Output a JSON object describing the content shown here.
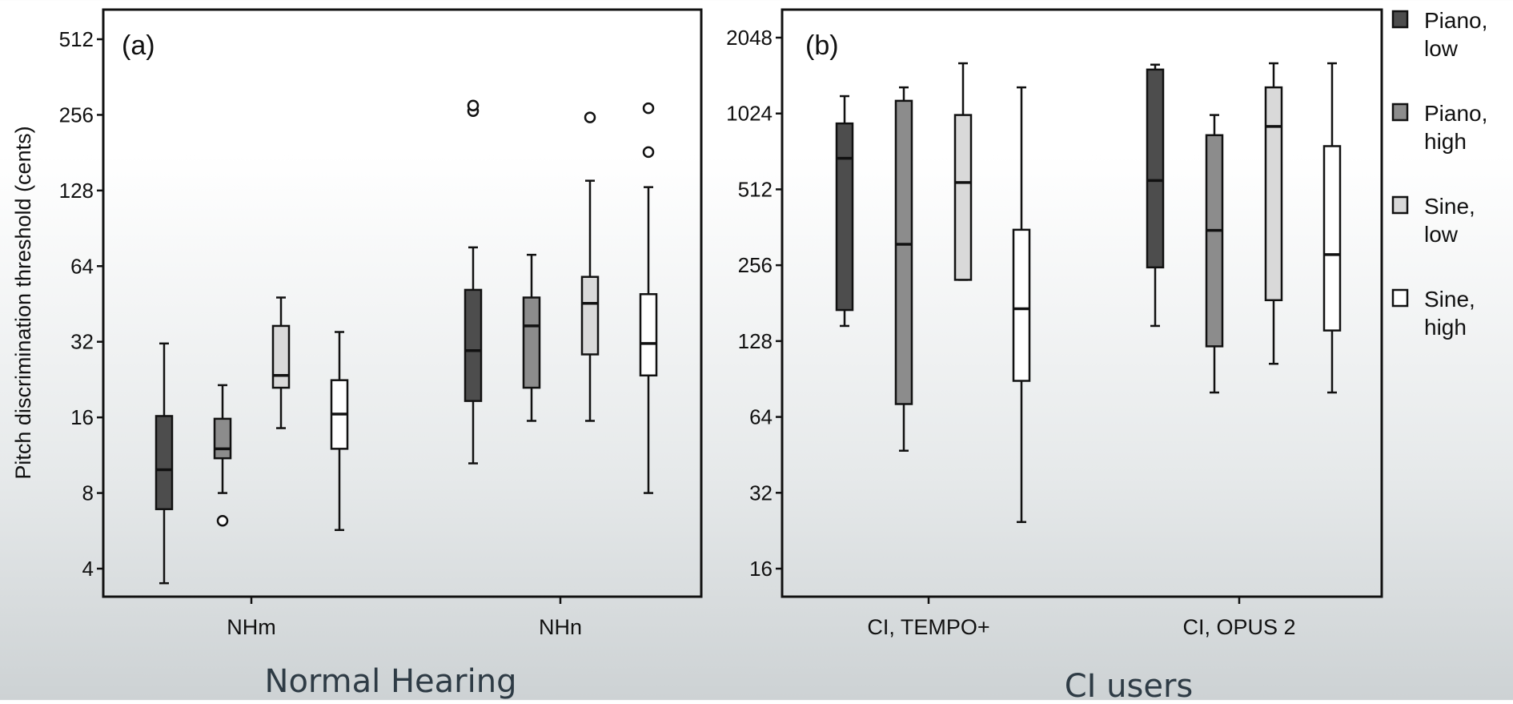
{
  "chart_data": [
    {
      "type": "box",
      "panel_label": "(a)",
      "ylabel": "Pitch discrimination threshold (cents)",
      "y_scale": "log2",
      "ylim": [
        3.4,
        600
      ],
      "yticks": [
        "4",
        "8",
        "16",
        "32",
        "64",
        "128",
        "256",
        "512"
      ],
      "categories": [
        "NHm",
        "NHn"
      ],
      "group_title": "Normal Hearing",
      "series": [
        {
          "name": "Piano, low",
          "color": "#4d4d4d",
          "boxes": [
            {
              "min": 3.5,
              "q1": 6.9,
              "median": 9.9,
              "q3": 16.2,
              "max": 31.5,
              "outliers": []
            },
            {
              "min": 10.5,
              "q1": 18.6,
              "median": 29.5,
              "q3": 51.5,
              "max": 76,
              "outliers": [
                265,
                279
              ]
            }
          ]
        },
        {
          "name": "Piano, high",
          "color": "#8c8c8c",
          "boxes": [
            {
              "min": 8,
              "q1": 11,
              "median": 12,
              "q3": 15.8,
              "max": 21.5,
              "outliers": [
                6.2
              ]
            },
            {
              "min": 15.5,
              "q1": 21,
              "median": 37,
              "q3": 48,
              "max": 71,
              "outliers": []
            }
          ]
        },
        {
          "name": "Sine, low",
          "color": "#d9d9d9",
          "boxes": [
            {
              "min": 14.5,
              "q1": 21,
              "median": 23.5,
              "q3": 37,
              "max": 48,
              "outliers": []
            },
            {
              "min": 15.5,
              "q1": 28.5,
              "median": 45.5,
              "q3": 58,
              "max": 140,
              "outliers": [
                250
              ]
            }
          ]
        },
        {
          "name": "Sine, high",
          "color": "#ffffff",
          "boxes": [
            {
              "min": 5.7,
              "q1": 12,
              "median": 16.5,
              "q3": 22.5,
              "max": 35,
              "outliers": []
            },
            {
              "min": 8,
              "q1": 23.5,
              "median": 31.5,
              "q3": 49.5,
              "max": 132,
              "outliers": [
                182,
                272
              ]
            }
          ]
        }
      ]
    },
    {
      "type": "box",
      "panel_label": "(b)",
      "y_scale": "log2",
      "ylim": [
        13.6,
        2400
      ],
      "yticks": [
        "16",
        "32",
        "64",
        "128",
        "256",
        "512",
        "1024",
        "2048"
      ],
      "categories": [
        "CI, TEMPO+",
        "CI, OPUS 2"
      ],
      "group_title": "CI users",
      "series": [
        {
          "name": "Piano, low",
          "color": "#4d4d4d",
          "boxes": [
            {
              "min": 147,
              "q1": 170,
              "median": 680,
              "q3": 935,
              "max": 1200,
              "outliers": []
            },
            {
              "min": 147,
              "q1": 251,
              "median": 555,
              "q3": 1530,
              "max": 1600,
              "outliers": []
            }
          ]
        },
        {
          "name": "Piano, high",
          "color": "#8c8c8c",
          "boxes": [
            {
              "min": 47,
              "q1": 72,
              "median": 310,
              "q3": 1150,
              "max": 1300,
              "outliers": []
            },
            {
              "min": 80,
              "q1": 122,
              "median": 352,
              "q3": 840,
              "max": 1010,
              "outliers": []
            }
          ]
        },
        {
          "name": "Sine, low",
          "color": "#d9d9d9",
          "boxes": [
            {
              "min": 224,
              "q1": 224,
              "median": 545,
              "q3": 1010,
              "max": 1620,
              "outliers": []
            },
            {
              "min": 104,
              "q1": 186,
              "median": 910,
              "q3": 1300,
              "max": 1620,
              "outliers": []
            }
          ]
        },
        {
          "name": "Sine, high",
          "color": "#ffffff",
          "boxes": [
            {
              "min": 24.5,
              "q1": 89,
              "median": 172,
              "q3": 354,
              "max": 1300,
              "outliers": []
            },
            {
              "min": 80,
              "q1": 141,
              "median": 282,
              "q3": 760,
              "max": 1620,
              "outliers": []
            }
          ]
        }
      ]
    }
  ],
  "legend": [
    {
      "line1": "Piano,",
      "line2": "low",
      "color": "#4d4d4d"
    },
    {
      "line1": "Piano,",
      "line2": "high",
      "color": "#8c8c8c"
    },
    {
      "line1": "Sine,",
      "line2": "low",
      "color": "#d9d9d9"
    },
    {
      "line1": "Sine,",
      "line2": "high",
      "color": "#ffffff"
    }
  ]
}
